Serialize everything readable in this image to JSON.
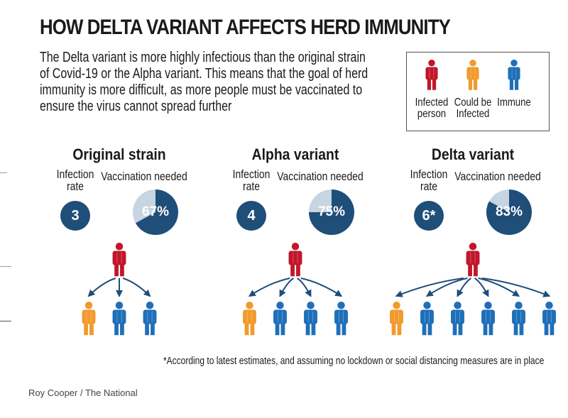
{
  "title": "HOW DELTA VARIANT AFFECTS HERD IMMUNITY",
  "subtitle": "The Delta variant is more highly infectious than the original strain of Covid-19 or the Alpha variant. This means that the goal of herd immunity is more difficult, as more people must be vaccinated to ensure the virus cannot spread further",
  "legend": [
    {
      "label": "Infected\nperson",
      "color": "#c0172b",
      "icon": "person-icon"
    },
    {
      "label": "Could be\nInfected",
      "color": "#f29a2e",
      "icon": "person-icon"
    },
    {
      "label": "Immune",
      "color": "#1f6fb8",
      "icon": "person-icon"
    }
  ],
  "labels": {
    "infection_rate": "Infection\nrate",
    "vaccination_needed": "Vaccination needed"
  },
  "colors": {
    "infected": "#c0172b",
    "could_be_infected": "#f29a2e",
    "immune": "#1f6fb8",
    "navy": "#1f4e79",
    "pie_bg": "#c7d4e1"
  },
  "chart_data": {
    "type": "pie",
    "panels": [
      {
        "name": "Original strain",
        "infection_rate_label": "3",
        "infection_rate": 3,
        "vaccination_label": "67%",
        "vaccination_needed": 67,
        "could_be_infected": 1,
        "immune": 2
      },
      {
        "name": "Alpha variant",
        "infection_rate_label": "4",
        "infection_rate": 4,
        "vaccination_label": "75%",
        "vaccination_needed": 75,
        "could_be_infected": 1,
        "immune": 3
      },
      {
        "name": "Delta variant",
        "infection_rate_label": "6*",
        "infection_rate": 6,
        "vaccination_label": "83%",
        "vaccination_needed": 83,
        "could_be_infected": 1,
        "immune": 5
      }
    ]
  },
  "footnote": "*According to latest estimates, and assuming no lockdown or social distancing measures are in place",
  "credit": "Roy Cooper / The National"
}
